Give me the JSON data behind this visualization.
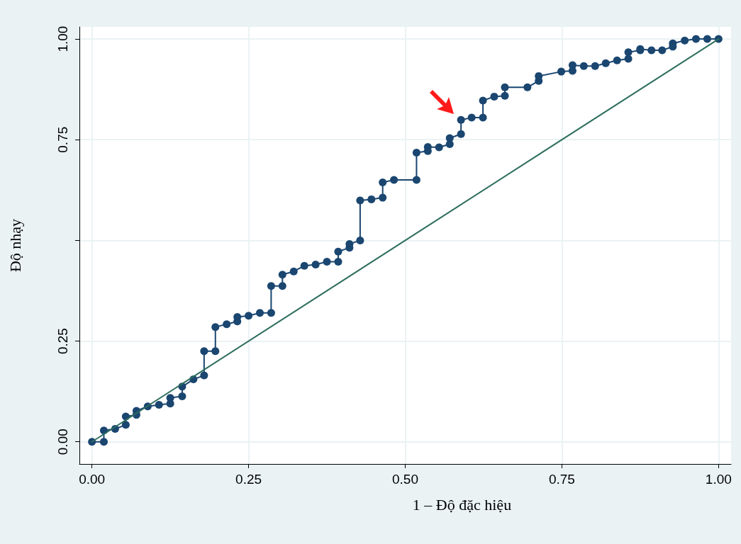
{
  "chart_data": {
    "type": "line",
    "xlabel": "1 – Độ đặc hiệu",
    "ylabel": "Độ nhạy",
    "xlim": [
      -0.02,
      1.02
    ],
    "ylim": [
      -0.055,
      1.03
    ],
    "xticks": [
      {
        "value": 0,
        "label": "0.00"
      },
      {
        "value": 0.25,
        "label": "0.25"
      },
      {
        "value": 0.5,
        "label": "0.50"
      },
      {
        "value": 0.75,
        "label": "0.75"
      },
      {
        "value": 1,
        "label": "1.00"
      }
    ],
    "yticks": [
      {
        "value": 0,
        "label": "0.00"
      },
      {
        "value": 0.25,
        "label": "0.25"
      },
      {
        "value": 0.5,
        "label": null
      },
      {
        "value": 0.75,
        "label": "0.75"
      },
      {
        "value": 1,
        "label": "1.00"
      }
    ],
    "grid": true,
    "series": [
      {
        "color": "#1a4670",
        "marker": "circle",
        "x": [
          0,
          0.019,
          0.019,
          0.037,
          0.054,
          0.054,
          0.071,
          0.071,
          0.089,
          0.107,
          0.125,
          0.125,
          0.144,
          0.144,
          0.162,
          0.179,
          0.179,
          0.197,
          0.197,
          0.215,
          0.232,
          0.232,
          0.25,
          0.268,
          0.286,
          0.286,
          0.304,
          0.304,
          0.322,
          0.339,
          0.357,
          0.375,
          0.393,
          0.393,
          0.411,
          0.411,
          0.428,
          0.428,
          0.446,
          0.464,
          0.464,
          0.482,
          0.518,
          0.518,
          0.536,
          0.536,
          0.554,
          0.571,
          0.571,
          0.589,
          0.589,
          0.606,
          0.624,
          0.624,
          0.642,
          0.659,
          0.659,
          0.695,
          0.713,
          0.713,
          0.749,
          0.767,
          0.767,
          0.785,
          0.803,
          0.82,
          0.838,
          0.856,
          0.856,
          0.875,
          0.875,
          0.893,
          0.91,
          0.927,
          0.927,
          0.946,
          0.964,
          0.982,
          1
        ],
        "values": [
          0,
          0,
          0.028,
          0.032,
          0.042,
          0.063,
          0.067,
          0.077,
          0.088,
          0.092,
          0.095,
          0.109,
          0.113,
          0.137,
          0.155,
          0.165,
          0.225,
          0.225,
          0.285,
          0.292,
          0.299,
          0.31,
          0.313,
          0.32,
          0.32,
          0.387,
          0.387,
          0.415,
          0.423,
          0.437,
          0.44,
          0.447,
          0.447,
          0.472,
          0.482,
          0.491,
          0.5,
          0.599,
          0.602,
          0.606,
          0.644,
          0.65,
          0.65,
          0.718,
          0.722,
          0.732,
          0.731,
          0.739,
          0.754,
          0.764,
          0.799,
          0.805,
          0.805,
          0.847,
          0.857,
          0.859,
          0.88,
          0.88,
          0.896,
          0.908,
          0.919,
          0.921,
          0.935,
          0.933,
          0.933,
          0.94,
          0.947,
          0.951,
          0.967,
          0.972,
          0.975,
          0.972,
          0.972,
          0.981,
          0.989,
          0.996,
          1,
          1,
          1
        ]
      },
      {
        "color": "#2e6e5e",
        "marker": "none",
        "x": [
          0,
          1
        ],
        "values": [
          0,
          1
        ]
      }
    ]
  }
}
